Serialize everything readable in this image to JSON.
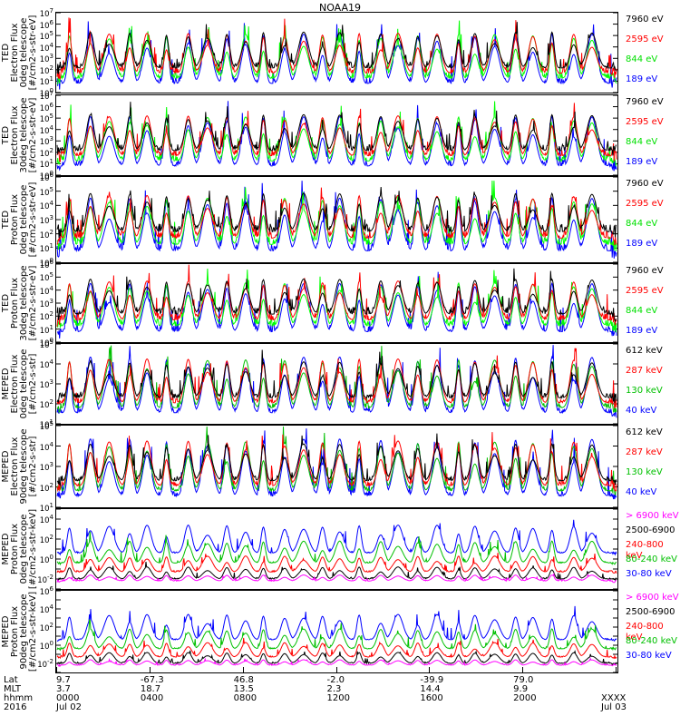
{
  "title": "NOAA19",
  "chart_data": [
    {
      "type": "line",
      "instrument": "TED",
      "quantity": "Electron Flux",
      "detector": "0deg telescope",
      "units": "[#/cm2-s-str-eV]",
      "ylim_exp": [
        0,
        7
      ],
      "yticks": [
        "10^0",
        "10^1",
        "10^2",
        "10^3",
        "10^4",
        "10^5",
        "10^6",
        "10^7"
      ],
      "series": [
        {
          "name": "7960 eV",
          "color": "#000000"
        },
        {
          "name": "2595 eV",
          "color": "#ff0000"
        },
        {
          "name": "844 eV",
          "color": "#00ff00"
        },
        {
          "name": "189 eV",
          "color": "#0000ff"
        }
      ]
    },
    {
      "type": "line",
      "instrument": "TED",
      "quantity": "Electron Flux",
      "detector": "30deg telescope",
      "units": "[#/cm2-s-str-eV]",
      "ylim_exp": [
        0,
        7
      ],
      "yticks": [
        "10^0",
        "10^1",
        "10^2",
        "10^3",
        "10^4",
        "10^5",
        "10^6",
        "10^7"
      ],
      "series": [
        {
          "name": "7960 eV",
          "color": "#000000"
        },
        {
          "name": "2595 eV",
          "color": "#ff0000"
        },
        {
          "name": "844 eV",
          "color": "#00ff00"
        },
        {
          "name": "189 eV",
          "color": "#0000ff"
        }
      ]
    },
    {
      "type": "line",
      "instrument": "TED",
      "quantity": "Proton Flux",
      "detector": "0deg telescope",
      "units": "[#/cm2-s-str-eV]",
      "ylim_exp": [
        0,
        6
      ],
      "yticks": [
        "10^0",
        "10^1",
        "10^2",
        "10^3",
        "10^4",
        "10^5",
        "10^6"
      ],
      "series": [
        {
          "name": "7960 eV",
          "color": "#000000"
        },
        {
          "name": "2595 eV",
          "color": "#ff0000"
        },
        {
          "name": "844 eV",
          "color": "#00ff00"
        },
        {
          "name": "189 eV",
          "color": "#0000ff"
        }
      ]
    },
    {
      "type": "line",
      "instrument": "TED",
      "quantity": "Proton Flux",
      "detector": "30deg telescope",
      "units": "[#/cm2-s-str-eV]",
      "ylim_exp": [
        0,
        6
      ],
      "yticks": [
        "10^0",
        "10^1",
        "10^2",
        "10^3",
        "10^4",
        "10^5",
        "10^6"
      ],
      "series": [
        {
          "name": "7960 eV",
          "color": "#000000"
        },
        {
          "name": "2595 eV",
          "color": "#ff0000"
        },
        {
          "name": "844 eV",
          "color": "#00ff00"
        },
        {
          "name": "189 eV",
          "color": "#0000ff"
        }
      ]
    },
    {
      "type": "line",
      "instrument": "MEPED",
      "quantity": "Electron Flux",
      "detector": "0deg telescope",
      "units": "[#/cm2-s-str]",
      "ylim_exp": [
        1,
        5
      ],
      "yticks": [
        "10^1",
        "10^2",
        "10^3",
        "10^4",
        "10^5"
      ],
      "series": [
        {
          "name": "612 keV",
          "color": "#000000"
        },
        {
          "name": "287 keV",
          "color": "#ff0000"
        },
        {
          "name": "130 keV",
          "color": "#00c000"
        },
        {
          "name": "40 keV",
          "color": "#0000ff"
        }
      ]
    },
    {
      "type": "line",
      "instrument": "MEPED",
      "quantity": "Electron Flux",
      "detector": "90deg telescope",
      "units": "[#/cm2-s-str]",
      "ylim_exp": [
        1,
        5
      ],
      "yticks": [
        "10^1",
        "10^2",
        "10^3",
        "10^4",
        "10^5"
      ],
      "series": [
        {
          "name": "612 keV",
          "color": "#000000"
        },
        {
          "name": "287 keV",
          "color": "#ff0000"
        },
        {
          "name": "130 keV",
          "color": "#00c000"
        },
        {
          "name": "40 keV",
          "color": "#0000ff"
        }
      ]
    },
    {
      "type": "line",
      "instrument": "MEPED",
      "quantity": "Proton Flux",
      "detector": "0deg telescope",
      "units": "[#/cm2-s-str-keV]",
      "ylim_exp": [
        -3,
        5
      ],
      "yticks": [
        "10^-2",
        "10^0",
        "10^2",
        "10^4"
      ],
      "series": [
        {
          "name": "> 6900 keV",
          "color": "#ff00ff"
        },
        {
          "name": "2500-6900",
          "color": "#000000"
        },
        {
          "name": "240-800 keV",
          "color": "#ff0000"
        },
        {
          "name": "80-240 keV",
          "color": "#00c000"
        },
        {
          "name": "30-80 keV",
          "color": "#0000ff"
        }
      ]
    },
    {
      "type": "line",
      "instrument": "MEPED",
      "quantity": "Proton Flux",
      "detector": "90deg telescope",
      "units": "[#/cm2-s-str-keV]",
      "ylim_exp": [
        -3,
        6
      ],
      "yticks": [
        "10^-2",
        "10^0",
        "10^2",
        "10^4",
        "10^6"
      ],
      "series": [
        {
          "name": "> 6900 keV",
          "color": "#ff00ff"
        },
        {
          "name": "2500-6900",
          "color": "#000000"
        },
        {
          "name": "240-800 keV",
          "color": "#ff0000"
        },
        {
          "name": "80-240 keV",
          "color": "#00c000"
        },
        {
          "name": "30-80 keV",
          "color": "#0000ff"
        }
      ]
    }
  ],
  "xaxis": {
    "row_labels": [
      "Lat",
      "MLT",
      "hhmm",
      "2016"
    ],
    "ticks": [
      {
        "lat": "9.7",
        "mlt": "3.7",
        "hhmm": "0000",
        "date": "Jul 02"
      },
      {
        "lat": "-67.3",
        "mlt": "18.7",
        "hhmm": "0400",
        "date": ""
      },
      {
        "lat": "46.8",
        "mlt": "13.5",
        "hhmm": "0800",
        "date": ""
      },
      {
        "lat": "-2.0",
        "mlt": "2.3",
        "hhmm": "1200",
        "date": ""
      },
      {
        "lat": "-39.9",
        "mlt": "14.4",
        "hhmm": "1600",
        "date": ""
      },
      {
        "lat": "79.0",
        "mlt": "9.9",
        "hhmm": "2000",
        "date": ""
      },
      {
        "lat": "",
        "mlt": "",
        "hhmm": "XXXX",
        "date": "Jul 03"
      }
    ]
  }
}
